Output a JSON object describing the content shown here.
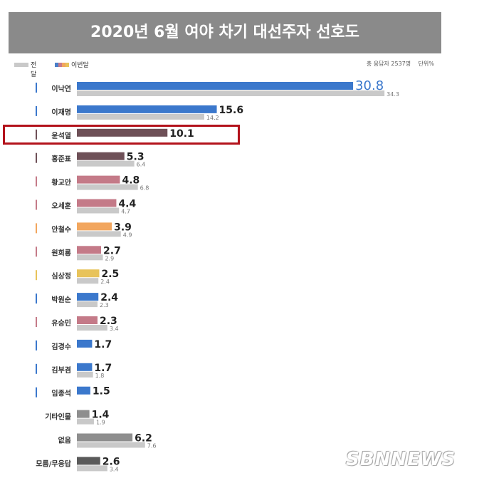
{
  "header": {
    "title": "2020년 6월 여야 차기 대선주자 선호도"
  },
  "legend": {
    "previous": "전달",
    "current": "이번달"
  },
  "meta": {
    "sample": "총 응답자 2537명",
    "unit": "단위%"
  },
  "watermark": "SBNNEWS",
  "colors": {
    "blue": "#3b78cc",
    "brown": "#6e5057",
    "pink": "#c47a88",
    "orange": "#f2a65e",
    "yellow": "#e8c35a",
    "gray_prev": "#c9c9c9",
    "gray_dark": "#8e8e8e",
    "gray_darker": "#5a5a5a",
    "highlight": "#b3121b"
  },
  "chart_data": {
    "type": "bar",
    "orientation": "horizontal",
    "title": "2020년 6월 여야 차기 대선주자 선호도",
    "unit": "%",
    "categories": [
      "이낙연",
      "이재명",
      "윤석열",
      "홍준표",
      "황교안",
      "오세훈",
      "안철수",
      "원희룡",
      "심상정",
      "박원순",
      "유승민",
      "김경수",
      "김부겸",
      "임종석",
      "기타인물",
      "없음",
      "모름/무응답"
    ],
    "series": [
      {
        "name": "이번달",
        "values": [
          30.8,
          15.6,
          10.1,
          5.3,
          4.8,
          4.4,
          3.9,
          2.7,
          2.5,
          2.4,
          2.3,
          1.7,
          1.7,
          1.5,
          1.4,
          6.2,
          2.6
        ],
        "labels": [
          "30.8",
          "15.6",
          "10.1",
          "5.3",
          "4.8",
          "4.4",
          "3.9",
          "2.7",
          "2.5",
          "2.4",
          "2.3",
          "1.7",
          "1.7",
          "1.5",
          "1.4",
          "6.2",
          "2.6"
        ],
        "colors": [
          "blue",
          "blue",
          "brown",
          "brown",
          "pink",
          "pink",
          "orange",
          "pink",
          "yellow",
          "blue",
          "pink",
          "blue",
          "blue",
          "blue",
          "gray_dark",
          "gray_dark",
          "gray_darker"
        ]
      },
      {
        "name": "전달",
        "values": [
          34.3,
          14.2,
          null,
          6.4,
          6.8,
          4.7,
          4.9,
          2.9,
          2.4,
          2.3,
          3.4,
          null,
          1.8,
          null,
          1.9,
          7.6,
          3.4
        ],
        "labels": [
          "34.3",
          "14.2",
          "",
          "6.4",
          "6.8",
          "4.7",
          "4.9",
          "2.9",
          "2.4",
          "2.3",
          "3.4",
          "",
          "1.8",
          "",
          "1.9",
          "7.6",
          "3.4"
        ]
      }
    ],
    "category_marker_colors": [
      "blue",
      "blue",
      "brown",
      "brown",
      "pink",
      "pink",
      "orange",
      "pink",
      "yellow",
      "blue",
      "pink",
      "blue",
      "blue",
      "blue",
      "none",
      "none",
      "none"
    ],
    "highlighted_category": "윤석열",
    "grid": false,
    "legend_position": "top-left"
  }
}
